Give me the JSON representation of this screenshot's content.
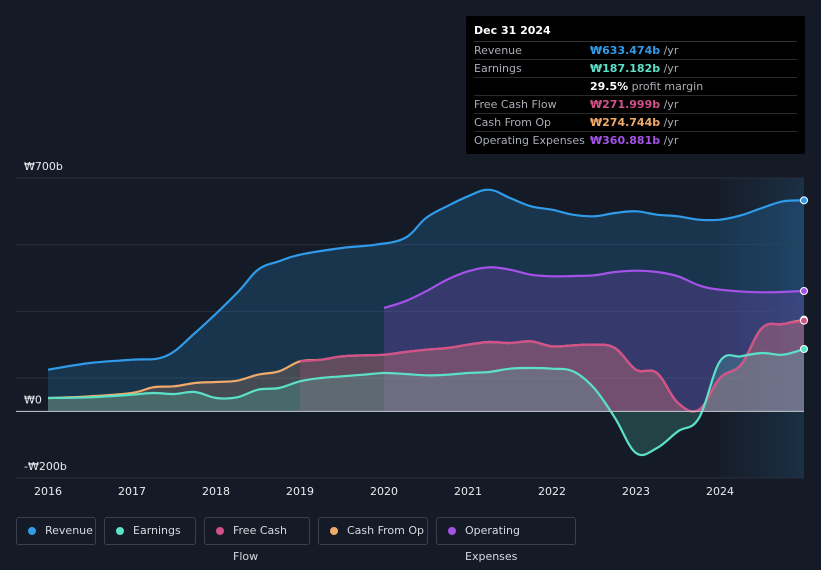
{
  "tooltip": {
    "date": "Dec 31 2024",
    "rows": [
      {
        "label": "Revenue",
        "value": "₩633.474b",
        "unit": "/yr",
        "color": "#2f9be9"
      },
      {
        "label": "Earnings",
        "value": "₩187.182b",
        "unit": "/yr",
        "color": "#5ce0c8"
      },
      {
        "label": "",
        "value": "29.5%",
        "unit": "profit margin",
        "color": "#ffffff"
      },
      {
        "label": "Free Cash Flow",
        "value": "₩271.999b",
        "unit": "/yr",
        "color": "#d4508a"
      },
      {
        "label": "Cash From Op",
        "value": "₩274.744b",
        "unit": "/yr",
        "color": "#f0aa6a"
      },
      {
        "label": "Operating Expenses",
        "value": "₩360.881b",
        "unit": "/yr",
        "color": "#a452e8"
      }
    ]
  },
  "legend": [
    {
      "label": "Revenue",
      "color": "#2f9be9"
    },
    {
      "label": "Earnings",
      "color": "#5ce0c8"
    },
    {
      "label": "Free Cash Flow",
      "color": "#d4508a"
    },
    {
      "label": "Cash From Op",
      "color": "#f0aa6a"
    },
    {
      "label": "Operating Expenses",
      "color": "#a452e8"
    }
  ],
  "chart_data": {
    "type": "area",
    "unit": "₩ billions",
    "ylim": [
      -200,
      700
    ],
    "y_tick_labels": [
      {
        "value": 700,
        "label": "₩700b"
      },
      {
        "value": 0,
        "label": "₩0"
      },
      {
        "value": -200,
        "label": "-₩200b"
      }
    ],
    "x_tick_labels": [
      "2016",
      "2017",
      "2018",
      "2019",
      "2020",
      "2021",
      "2022",
      "2023",
      "2024"
    ],
    "x_tick_values": [
      2016,
      2017,
      2018,
      2019,
      2020,
      2021,
      2022,
      2023,
      2024
    ],
    "xlim": [
      2016,
      2025
    ],
    "forecast_start": 2024,
    "series": [
      {
        "name": "Revenue",
        "color": "#2f9be9",
        "points": [
          [
            2016,
            125
          ],
          [
            2016.5,
            145
          ],
          [
            2017,
            155
          ],
          [
            2017.4,
            165
          ],
          [
            2017.75,
            235
          ],
          [
            2018.25,
            355
          ],
          [
            2018.5,
            425
          ],
          [
            2018.75,
            450
          ],
          [
            2019,
            470
          ],
          [
            2019.5,
            490
          ],
          [
            2019.9,
            500
          ],
          [
            2020.25,
            520
          ],
          [
            2020.5,
            580
          ],
          [
            2020.75,
            615
          ],
          [
            2021,
            645
          ],
          [
            2021.25,
            665
          ],
          [
            2021.5,
            640
          ],
          [
            2021.75,
            615
          ],
          [
            2022,
            605
          ],
          [
            2022.25,
            590
          ],
          [
            2022.5,
            585
          ],
          [
            2022.75,
            595
          ],
          [
            2023,
            600
          ],
          [
            2023.25,
            590
          ],
          [
            2023.5,
            585
          ],
          [
            2023.75,
            575
          ],
          [
            2024,
            575
          ],
          [
            2024.25,
            588
          ],
          [
            2024.5,
            610
          ],
          [
            2024.75,
            630
          ],
          [
            2025,
            633
          ]
        ]
      },
      {
        "name": "Operating Expenses",
        "color": "#a452e8",
        "points": [
          [
            2020,
            310
          ],
          [
            2020.25,
            330
          ],
          [
            2020.5,
            360
          ],
          [
            2020.75,
            395
          ],
          [
            2021,
            420
          ],
          [
            2021.25,
            432
          ],
          [
            2021.5,
            425
          ],
          [
            2021.75,
            410
          ],
          [
            2022,
            405
          ],
          [
            2022.25,
            406
          ],
          [
            2022.5,
            408
          ],
          [
            2022.75,
            418
          ],
          [
            2023,
            422
          ],
          [
            2023.25,
            418
          ],
          [
            2023.5,
            405
          ],
          [
            2023.75,
            378
          ],
          [
            2024,
            365
          ],
          [
            2024.5,
            357
          ],
          [
            2025,
            361
          ]
        ]
      },
      {
        "name": "Cash From Op",
        "color": "#f0aa6a",
        "points": [
          [
            2016,
            40
          ],
          [
            2016.5,
            45
          ],
          [
            2017,
            55
          ],
          [
            2017.25,
            72
          ],
          [
            2017.5,
            75
          ],
          [
            2017.75,
            85
          ],
          [
            2018,
            88
          ],
          [
            2018.25,
            92
          ],
          [
            2018.5,
            110
          ],
          [
            2018.75,
            120
          ],
          [
            2019,
            150
          ],
          [
            2019.25,
            155
          ],
          [
            2019.5,
            165
          ],
          [
            2019.75,
            168
          ],
          [
            2020,
            170
          ],
          [
            2020.25,
            178
          ],
          [
            2020.5,
            185
          ],
          [
            2020.75,
            190
          ],
          [
            2021,
            200
          ],
          [
            2021.25,
            208
          ],
          [
            2021.5,
            205
          ],
          [
            2021.75,
            210
          ],
          [
            2022,
            195
          ],
          [
            2022.25,
            198
          ],
          [
            2022.5,
            200
          ],
          [
            2022.75,
            190
          ],
          [
            2023,
            125
          ],
          [
            2023.25,
            115
          ],
          [
            2023.5,
            25
          ],
          [
            2023.75,
            5
          ],
          [
            2024,
            100
          ],
          [
            2024.25,
            140
          ],
          [
            2024.5,
            250
          ],
          [
            2024.75,
            262
          ],
          [
            2025,
            275
          ]
        ]
      },
      {
        "name": "Free Cash Flow",
        "color": "#d4508a",
        "points": [
          [
            2019,
            150
          ],
          [
            2019.25,
            155
          ],
          [
            2019.5,
            165
          ],
          [
            2019.75,
            168
          ],
          [
            2020,
            170
          ],
          [
            2020.25,
            178
          ],
          [
            2020.5,
            185
          ],
          [
            2020.75,
            190
          ],
          [
            2021,
            200
          ],
          [
            2021.25,
            208
          ],
          [
            2021.5,
            205
          ],
          [
            2021.75,
            210
          ],
          [
            2022,
            195
          ],
          [
            2022.25,
            198
          ],
          [
            2022.5,
            200
          ],
          [
            2022.75,
            190
          ],
          [
            2023,
            125
          ],
          [
            2023.25,
            115
          ],
          [
            2023.5,
            25
          ],
          [
            2023.75,
            5
          ],
          [
            2024,
            100
          ],
          [
            2024.25,
            140
          ],
          [
            2024.5,
            250
          ],
          [
            2024.75,
            262
          ],
          [
            2025,
            272
          ]
        ]
      },
      {
        "name": "Earnings",
        "color": "#5ce0c8",
        "points": [
          [
            2016,
            40
          ],
          [
            2016.5,
            42
          ],
          [
            2017,
            50
          ],
          [
            2017.25,
            55
          ],
          [
            2017.5,
            52
          ],
          [
            2017.75,
            58
          ],
          [
            2018,
            40
          ],
          [
            2018.25,
            42
          ],
          [
            2018.5,
            65
          ],
          [
            2018.75,
            70
          ],
          [
            2019,
            90
          ],
          [
            2019.25,
            100
          ],
          [
            2019.5,
            105
          ],
          [
            2019.75,
            110
          ],
          [
            2020,
            115
          ],
          [
            2020.25,
            112
          ],
          [
            2020.5,
            108
          ],
          [
            2020.75,
            110
          ],
          [
            2021,
            115
          ],
          [
            2021.25,
            118
          ],
          [
            2021.5,
            128
          ],
          [
            2021.75,
            130
          ],
          [
            2022,
            128
          ],
          [
            2022.25,
            120
          ],
          [
            2022.5,
            70
          ],
          [
            2022.75,
            -20
          ],
          [
            2023,
            -125
          ],
          [
            2023.25,
            -110
          ],
          [
            2023.5,
            -60
          ],
          [
            2023.75,
            -20
          ],
          [
            2024,
            150
          ],
          [
            2024.25,
            165
          ],
          [
            2024.5,
            175
          ],
          [
            2024.75,
            170
          ],
          [
            2025,
            187
          ]
        ]
      }
    ]
  }
}
